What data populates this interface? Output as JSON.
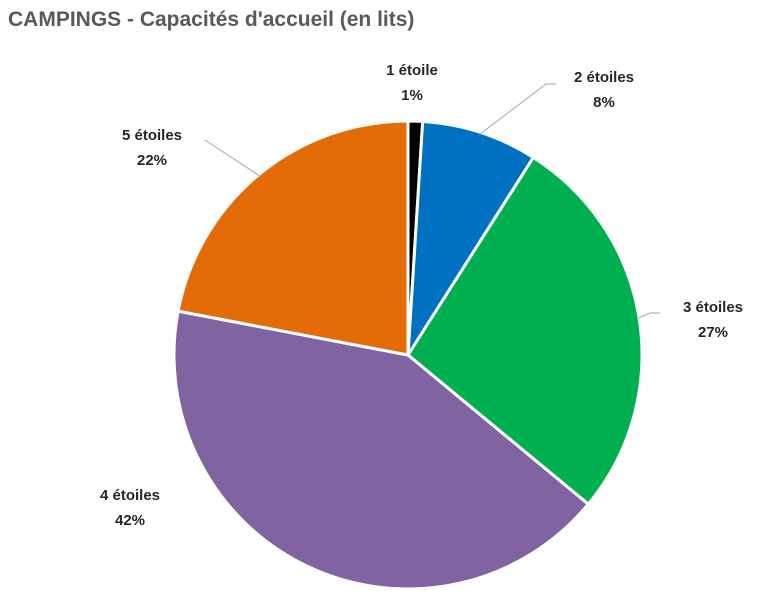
{
  "chart_data": {
    "type": "pie",
    "title": "CAMPINGS - Capacités d'accueil (en lits)",
    "categories": [
      "1 étoile",
      "2 étoiles",
      "3 étoiles",
      "4 étoiles",
      "5 étoiles"
    ],
    "values": [
      1,
      8,
      27,
      42,
      22
    ],
    "value_labels": [
      "1%",
      "8%",
      "27%",
      "42%",
      "22%"
    ],
    "colors": [
      "#000000",
      "#0070C0",
      "#00B050",
      "#8064A2",
      "#E36C09"
    ],
    "start_angle_deg": 0,
    "direction": "clockwise",
    "legend": "none",
    "label_position": "outside"
  }
}
